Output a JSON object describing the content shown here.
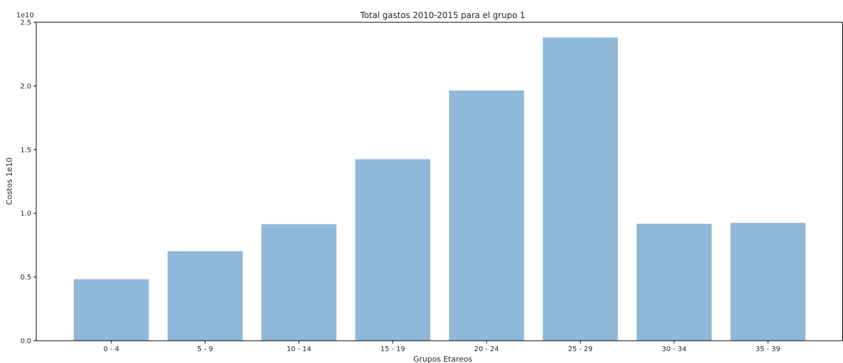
{
  "chart_data": {
    "type": "bar",
    "title": "Total gastos 2010-2015 para el grupo 1",
    "xlabel": "Grupos Etareos",
    "ylabel": "Costos 1e10",
    "y_offset_label": "1e10",
    "categories": [
      "0 - 4",
      "5 - 9",
      "10 - 14",
      "15 - 19",
      "20 - 24",
      "25 - 29",
      "30 - 34",
      "35 - 39"
    ],
    "values": [
      0.483,
      0.703,
      0.915,
      1.425,
      1.965,
      2.38,
      0.918,
      0.925
    ],
    "value_scale": "1e10",
    "ylim": [
      0,
      2.5
    ],
    "yticks": [
      "0.0",
      "0.5",
      "1.0",
      "1.5",
      "2.0",
      "2.5"
    ],
    "grid": false,
    "bar_color": "#8fb8d9"
  }
}
